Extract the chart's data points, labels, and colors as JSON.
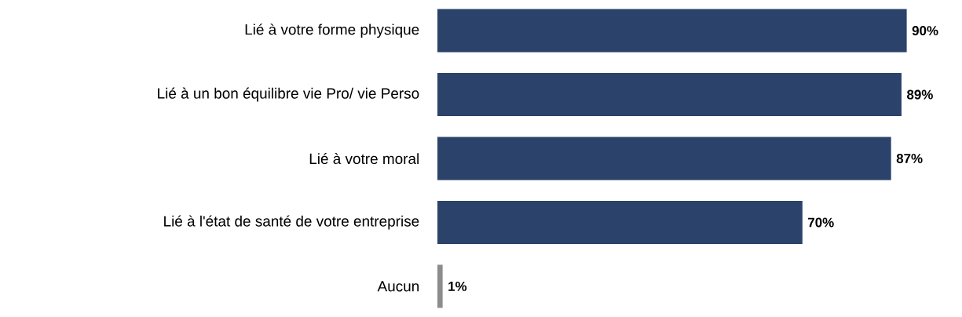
{
  "chart_data": {
    "type": "bar",
    "orientation": "horizontal",
    "categories": [
      "Lié à votre forme physique",
      "Lié à un bon équilibre vie Pro/ vie Perso",
      "Lié à votre moral",
      "Lié à l'état de santé de votre entreprise",
      "Aucun"
    ],
    "values": [
      90,
      89,
      87,
      70,
      1
    ],
    "colors": [
      "#2b436b",
      "#2b436b",
      "#2b436b",
      "#2b436b",
      "#8c8c8c"
    ],
    "value_labels": [
      "90%",
      "89%",
      "87%",
      "70%",
      "1%"
    ]
  }
}
